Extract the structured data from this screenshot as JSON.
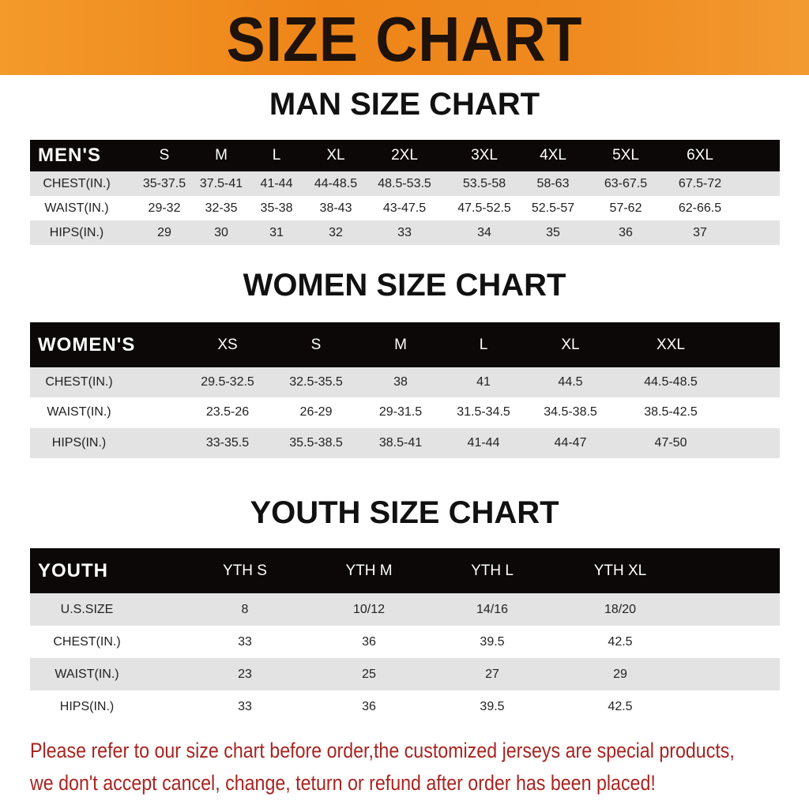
{
  "title": "SIZE CHART",
  "colors": {
    "banner": "#ee8418",
    "header_row": "#0c0808",
    "note": "#a82420"
  },
  "men": {
    "heading": "MAN SIZE CHART",
    "columns": [
      "MEN'S",
      "S",
      "M",
      "L",
      "XL",
      "2XL",
      "3XL",
      "4XL",
      "5XL",
      "6XL"
    ],
    "rows": [
      [
        "CHEST(IN.)",
        "35-37.5",
        "37.5-41",
        "41-44",
        "44-48.5",
        "48.5-53.5",
        "53.5-58",
        "58-63",
        "63-67.5",
        "67.5-72"
      ],
      [
        "WAIST(IN.)",
        "29-32",
        "32-35",
        "35-38",
        "38-43",
        "43-47.5",
        "47.5-52.5",
        "52.5-57",
        "57-62",
        "62-66.5"
      ],
      [
        "HIPS(IN.)",
        "29",
        "30",
        "31",
        "32",
        "33",
        "34",
        "35",
        "36",
        "37"
      ]
    ]
  },
  "women": {
    "heading": "WOMEN SIZE CHART",
    "columns": [
      "WOMEN'S",
      "XS",
      "S",
      "M",
      "L",
      "XL",
      "XXL"
    ],
    "rows": [
      [
        "CHEST(IN.)",
        "29.5-32.5",
        "32.5-35.5",
        "38",
        "41",
        "44.5",
        "44.5-48.5"
      ],
      [
        "WAIST(IN.)",
        "23.5-26",
        "26-29",
        "29-31.5",
        "31.5-34.5",
        "34.5-38.5",
        "38.5-42.5"
      ],
      [
        "HIPS(IN.)",
        "33-35.5",
        "35.5-38.5",
        "38.5-41",
        "41-44",
        "44-47",
        "47-50"
      ]
    ]
  },
  "youth": {
    "heading": "YOUTH SIZE CHART",
    "columns": [
      "YOUTH",
      "YTH S",
      "YTH M",
      "YTH L",
      "YTH XL"
    ],
    "rows": [
      [
        "U.S.SIZE",
        "8",
        "10/12",
        "14/16",
        "18/20"
      ],
      [
        "CHEST(IN.)",
        "33",
        "36",
        "39.5",
        "42.5"
      ],
      [
        "WAIST(IN.)",
        "23",
        "25",
        "27",
        "29"
      ],
      [
        "HIPS(IN.)",
        "33",
        "36",
        "39.5",
        "42.5"
      ]
    ]
  },
  "notice": {
    "line1": "Please refer to our size chart before order,the customized jerseys are special products,",
    "line2": "we don't accept cancel, change, teturn or refund after order has been placed!"
  }
}
